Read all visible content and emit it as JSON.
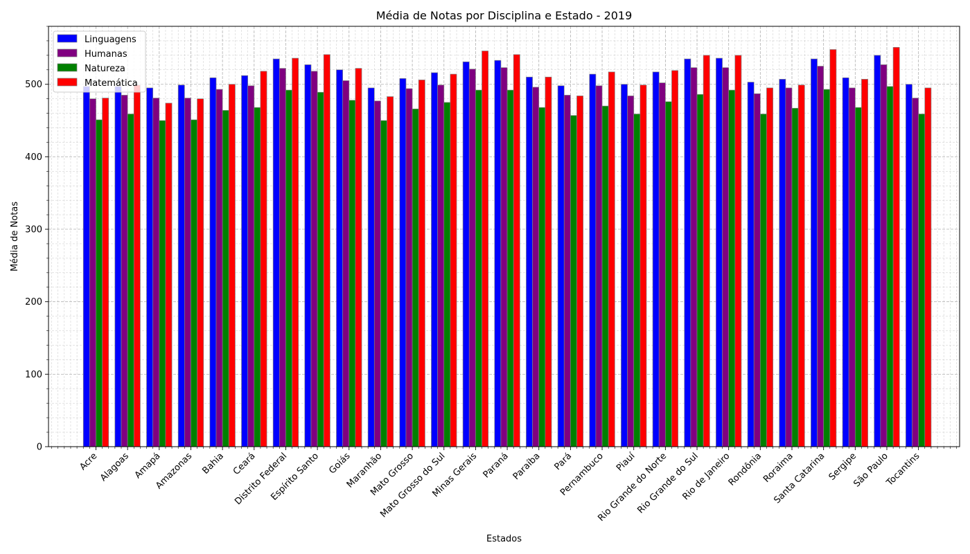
{
  "chart_data": {
    "type": "bar",
    "title": "Média de Notas por Disciplina e Estado - 2019",
    "xlabel": "Estados",
    "ylabel": "Média de Notas",
    "ylim": [
      0,
      580
    ],
    "yticks": [
      0,
      100,
      200,
      300,
      400,
      500
    ],
    "grid": true,
    "legend_position": "top-left",
    "categories": [
      "Acre",
      "Alagoas",
      "Amapá",
      "Amazonas",
      "Bahia",
      "Ceará",
      "Distrito Federal",
      "Espírito Santo",
      "Goiás",
      "Maranhão",
      "Mato Grosso",
      "Mato Grosso do Sul",
      "Minas Gerais",
      "Paraná",
      "Paraíba",
      "Pará",
      "Pernambuco",
      "Piauí",
      "Rio Grande do Norte",
      "Rio Grande do Sul",
      "Rio de Janeiro",
      "Rondônia",
      "Roraima",
      "Santa Catarina",
      "Sergipe",
      "São Paulo",
      "Tocantins"
    ],
    "series": [
      {
        "name": "Linguagens",
        "color": "#0000ff",
        "values": [
          497,
          497,
          495,
          499,
          509,
          512,
          535,
          527,
          520,
          495,
          508,
          516,
          531,
          533,
          510,
          498,
          514,
          500,
          517,
          535,
          536,
          503,
          507,
          535,
          509,
          540,
          500
        ]
      },
      {
        "name": "Humanas",
        "color": "#800080",
        "values": [
          480,
          485,
          481,
          481,
          493,
          498,
          522,
          518,
          505,
          477,
          494,
          499,
          521,
          523,
          496,
          485,
          498,
          484,
          502,
          523,
          523,
          487,
          495,
          525,
          495,
          527,
          481
        ]
      },
      {
        "name": "Natureza",
        "color": "#008000",
        "values": [
          451,
          459,
          450,
          451,
          464,
          468,
          492,
          489,
          478,
          450,
          466,
          475,
          492,
          492,
          468,
          457,
          470,
          459,
          476,
          486,
          492,
          459,
          467,
          493,
          468,
          497,
          459
        ]
      },
      {
        "name": "Matemática",
        "color": "#ff0000",
        "values": [
          481,
          499,
          474,
          480,
          500,
          518,
          536,
          541,
          522,
          483,
          506,
          514,
          546,
          541,
          510,
          484,
          517,
          499,
          519,
          540,
          540,
          495,
          499,
          548,
          507,
          551,
          495
        ]
      }
    ]
  }
}
